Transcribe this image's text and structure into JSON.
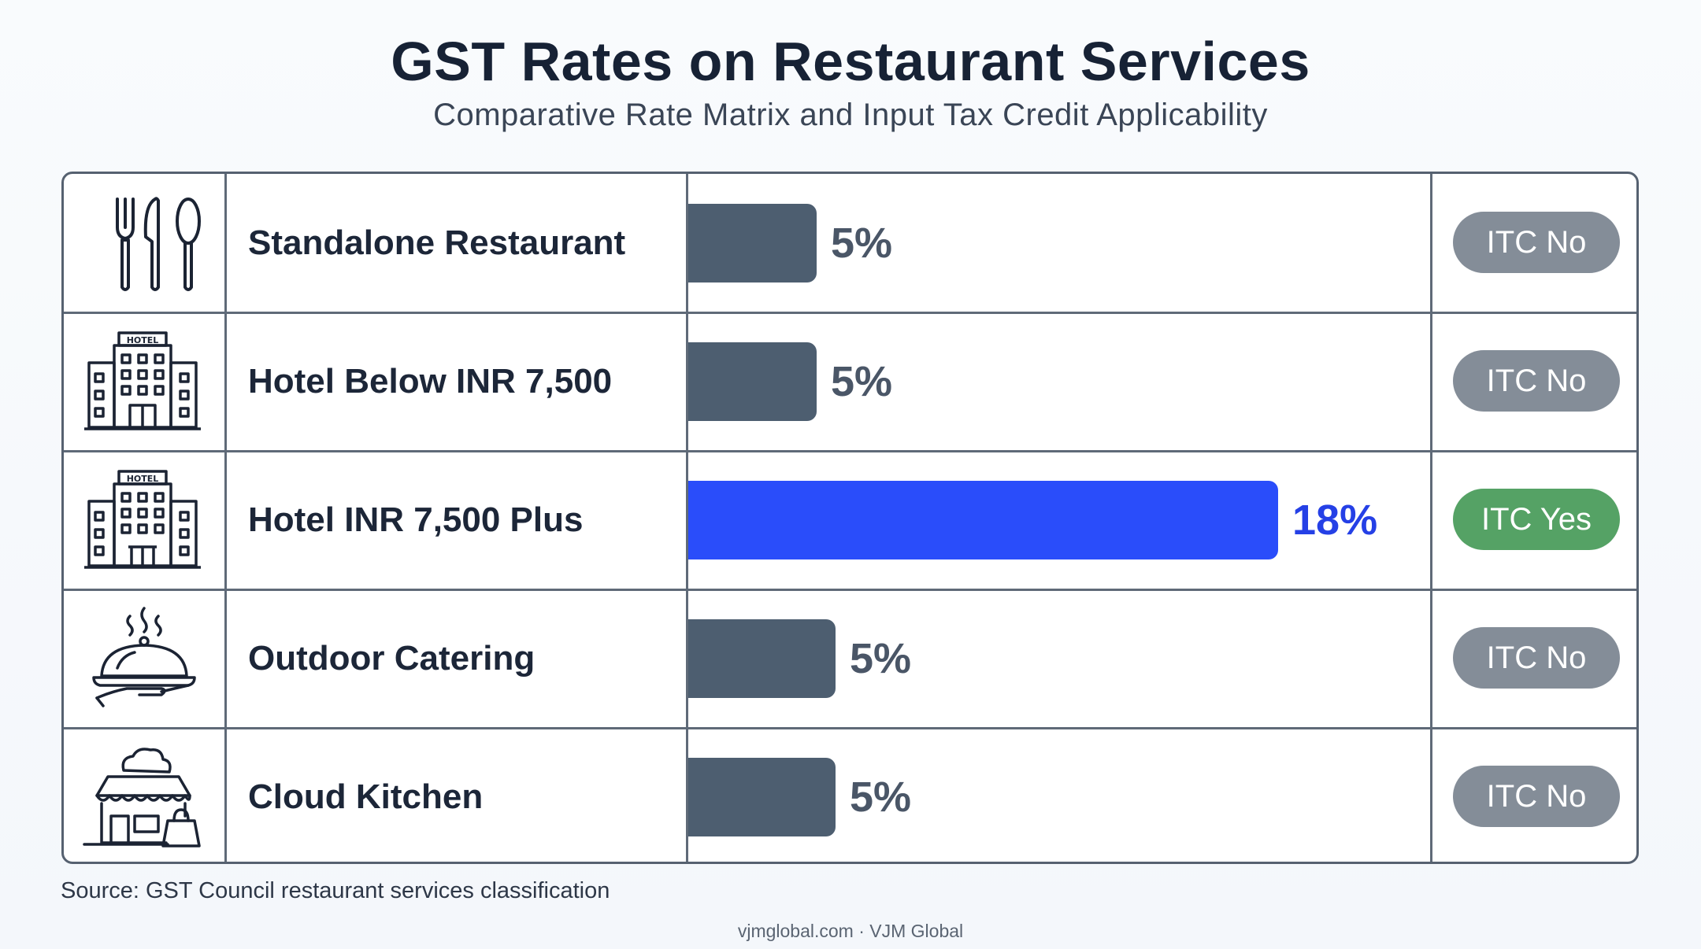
{
  "title": "GST Rates on Restaurant Services",
  "subtitle": "Comparative Rate Matrix and Input Tax Credit Applicability",
  "source": "Source: GST Council restaurant services classification",
  "footer": "vjmglobal.com · VJM Global",
  "colors": {
    "bar_default": "#4d5e70",
    "bar_highlight": "#2a4dfa",
    "itc_no": "#848d98",
    "itc_yes": "#55a265"
  },
  "chart_data": {
    "type": "bar",
    "orientation": "horizontal",
    "title": "GST Rates on Restaurant Services",
    "subtitle": "Comparative Rate Matrix and Input Tax Credit Applicability",
    "xlim": [
      0,
      25
    ],
    "unit": "%",
    "grid": false,
    "rows": [
      {
        "icon": "cutlery-icon",
        "category": "Standalone Restaurant",
        "value": 5,
        "value_label": "5%",
        "itc": "ITC No",
        "highlight": false
      },
      {
        "icon": "hotel-building-icon",
        "category": "Hotel Below INR 7,500",
        "value": 5,
        "value_label": "5%",
        "itc": "ITC No",
        "highlight": false
      },
      {
        "icon": "hotel-building-icon",
        "category": "Hotel INR 7,500 Plus",
        "value": 18,
        "value_label": "18%",
        "itc": "ITC Yes",
        "highlight": true
      },
      {
        "icon": "serving-cloche-icon",
        "category": "Outdoor Catering",
        "value": 5,
        "value_label": "5%",
        "itc": "ITC No",
        "highlight": false
      },
      {
        "icon": "cloud-kitchen-icon",
        "category": "Cloud Kitchen",
        "value": 5,
        "value_label": "5%",
        "itc": "ITC No",
        "highlight": false
      }
    ]
  }
}
